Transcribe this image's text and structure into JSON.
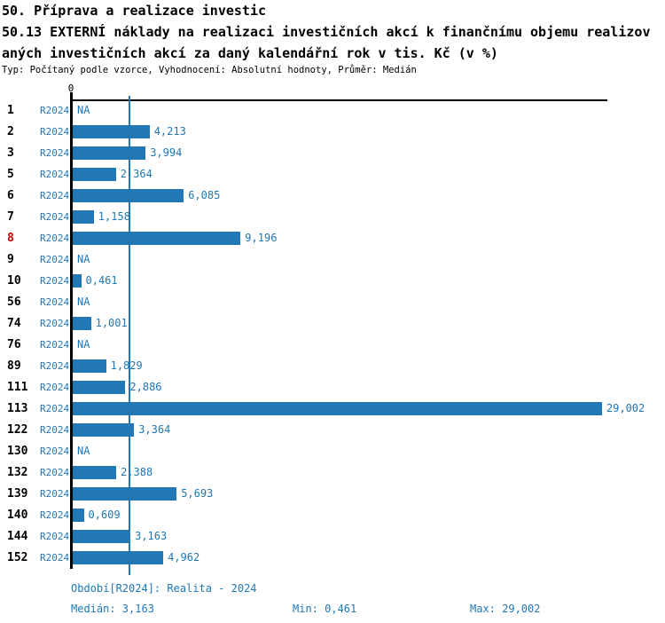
{
  "header": {
    "title_line1": "50. Příprava a realizace investic",
    "title_line2": "50.13 EXTERNÍ náklady na realizaci investičních akcí k finančnímu objemu realizov",
    "title_line3": "aných investičních akcí za daný kalendářní rok v tis. Kč (v %)",
    "subtitle": "Typ: Počítaný podle vzorce, Vyhodnocení: Absolutní hodnoty, Průměr: Medián"
  },
  "chart_data": {
    "type": "bar",
    "orientation": "horizontal",
    "series_label": "R2024",
    "axis_zero_label": "0",
    "xlim": [
      0,
      29.3
    ],
    "median_value": 3.163,
    "rows": [
      {
        "id": "1",
        "value": null,
        "label": "NA",
        "highlight": false
      },
      {
        "id": "2",
        "value": 4.213,
        "label": "4,213",
        "highlight": false
      },
      {
        "id": "3",
        "value": 3.994,
        "label": "3,994",
        "highlight": false
      },
      {
        "id": "5",
        "value": 2.364,
        "label": "2,364",
        "highlight": false
      },
      {
        "id": "6",
        "value": 6.085,
        "label": "6,085",
        "highlight": false
      },
      {
        "id": "7",
        "value": 1.158,
        "label": "1,158",
        "highlight": false
      },
      {
        "id": "8",
        "value": 9.196,
        "label": "9,196",
        "highlight": true
      },
      {
        "id": "9",
        "value": null,
        "label": "NA",
        "highlight": false
      },
      {
        "id": "10",
        "value": 0.461,
        "label": "0,461",
        "highlight": false
      },
      {
        "id": "56",
        "value": null,
        "label": "NA",
        "highlight": false
      },
      {
        "id": "74",
        "value": 1.001,
        "label": "1,001",
        "highlight": false
      },
      {
        "id": "76",
        "value": null,
        "label": "NA",
        "highlight": false
      },
      {
        "id": "89",
        "value": 1.829,
        "label": "1,829",
        "highlight": false
      },
      {
        "id": "111",
        "value": 2.886,
        "label": "2,886",
        "highlight": false
      },
      {
        "id": "113",
        "value": 29.002,
        "label": "29,002",
        "highlight": false
      },
      {
        "id": "122",
        "value": 3.364,
        "label": "3,364",
        "highlight": false
      },
      {
        "id": "130",
        "value": null,
        "label": "NA",
        "highlight": false
      },
      {
        "id": "132",
        "value": 2.388,
        "label": "2,388",
        "highlight": false
      },
      {
        "id": "139",
        "value": 5.693,
        "label": "5,693",
        "highlight": false
      },
      {
        "id": "140",
        "value": 0.609,
        "label": "0,609",
        "highlight": false
      },
      {
        "id": "144",
        "value": 3.163,
        "label": "3,163",
        "highlight": false
      },
      {
        "id": "152",
        "value": 4.962,
        "label": "4,962",
        "highlight": false
      }
    ]
  },
  "footer": {
    "period": "Období[R2024]: Realita - 2024",
    "median": "Medián: 3,163",
    "min": "Min: 0,461",
    "max": "Max: 29,002"
  },
  "colors": {
    "bar": "#2277b5",
    "text_blue": "#1f77b4",
    "highlight_red": "#cc0000",
    "axis_black": "#000000"
  }
}
